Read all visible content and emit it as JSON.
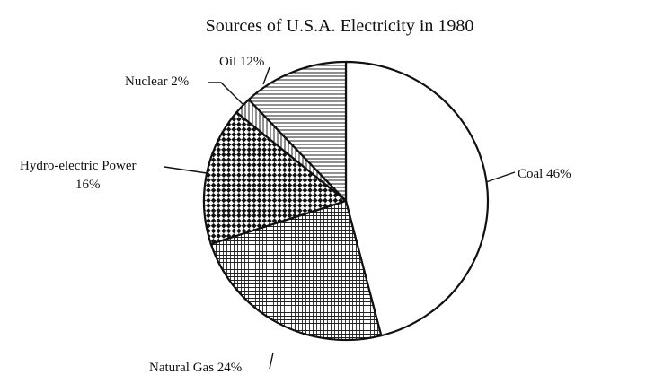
{
  "chart_data": {
    "type": "pie",
    "title": "Sources of U.S.A. Electricity in 1980",
    "slices": [
      {
        "name": "Coal",
        "label": "Coal 46%",
        "value": 46,
        "pattern": "white"
      },
      {
        "name": "Natural Gas",
        "label": "Natural Gas 24%",
        "value": 24,
        "pattern": "crosshatch"
      },
      {
        "name": "Hydro-electric Power",
        "label_lines": [
          "Hydro-electric Power",
          "16%"
        ],
        "value": 16,
        "pattern": "checker"
      },
      {
        "name": "Nuclear",
        "label": "Nuclear 2%",
        "value": 2,
        "pattern": "vertical"
      },
      {
        "name": "Oil",
        "label": "Oil 12%",
        "value": 12,
        "pattern": "horizontal"
      }
    ],
    "legend": "none"
  }
}
